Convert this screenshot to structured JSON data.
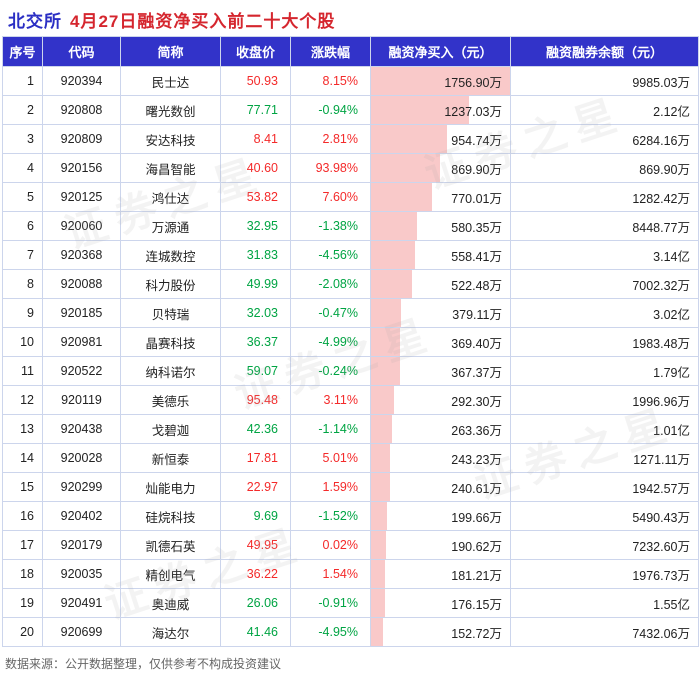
{
  "title": {
    "exchange": "北交所",
    "main": "4月27日融资净买入前二十大个股"
  },
  "table": {
    "headers": [
      "序号",
      "代码",
      "简称",
      "收盘价",
      "涨跌幅",
      "融资净买入（元）",
      "融资融券余额（元）"
    ],
    "rows": [
      {
        "seq": "1",
        "code": "920394",
        "name": "民士达",
        "price": "50.93",
        "change": "8.15%",
        "net_buy": "1756.90万",
        "balance": "9985.03万"
      },
      {
        "seq": "2",
        "code": "920808",
        "name": "曙光数创",
        "price": "77.71",
        "change": "-0.94%",
        "net_buy": "1237.03万",
        "balance": "2.12亿"
      },
      {
        "seq": "3",
        "code": "920809",
        "name": "安达科技",
        "price": "8.41",
        "change": "2.81%",
        "net_buy": "954.74万",
        "balance": "6284.16万"
      },
      {
        "seq": "4",
        "code": "920156",
        "name": "海昌智能",
        "price": "40.60",
        "change": "93.98%",
        "net_buy": "869.90万",
        "balance": "869.90万"
      },
      {
        "seq": "5",
        "code": "920125",
        "name": "鸿仕达",
        "price": "53.82",
        "change": "7.60%",
        "net_buy": "770.01万",
        "balance": "1282.42万"
      },
      {
        "seq": "6",
        "code": "920060",
        "name": "万源通",
        "price": "32.95",
        "change": "-1.38%",
        "net_buy": "580.35万",
        "balance": "8448.77万"
      },
      {
        "seq": "7",
        "code": "920368",
        "name": "连城数控",
        "price": "31.83",
        "change": "-4.56%",
        "net_buy": "558.41万",
        "balance": "3.14亿"
      },
      {
        "seq": "8",
        "code": "920088",
        "name": "科力股份",
        "price": "49.99",
        "change": "-2.08%",
        "net_buy": "522.48万",
        "balance": "7002.32万"
      },
      {
        "seq": "9",
        "code": "920185",
        "name": "贝特瑞",
        "price": "32.03",
        "change": "-0.47%",
        "net_buy": "379.11万",
        "balance": "3.02亿"
      },
      {
        "seq": "10",
        "code": "920981",
        "name": "晶赛科技",
        "price": "36.37",
        "change": "-4.99%",
        "net_buy": "369.40万",
        "balance": "1983.48万"
      },
      {
        "seq": "11",
        "code": "920522",
        "name": "纳科诺尔",
        "price": "59.07",
        "change": "-0.24%",
        "net_buy": "367.37万",
        "balance": "1.79亿"
      },
      {
        "seq": "12",
        "code": "920119",
        "name": "美德乐",
        "price": "95.48",
        "change": "3.11%",
        "net_buy": "292.30万",
        "balance": "1996.96万"
      },
      {
        "seq": "13",
        "code": "920438",
        "name": "戈碧迦",
        "price": "42.36",
        "change": "-1.14%",
        "net_buy": "263.36万",
        "balance": "1.01亿"
      },
      {
        "seq": "14",
        "code": "920028",
        "name": "新恒泰",
        "price": "17.81",
        "change": "5.01%",
        "net_buy": "243.23万",
        "balance": "1271.11万"
      },
      {
        "seq": "15",
        "code": "920299",
        "name": "灿能电力",
        "price": "22.97",
        "change": "1.59%",
        "net_buy": "240.61万",
        "balance": "1942.57万"
      },
      {
        "seq": "16",
        "code": "920402",
        "name": "硅烷科技",
        "price": "9.69",
        "change": "-1.52%",
        "net_buy": "199.66万",
        "balance": "5490.43万"
      },
      {
        "seq": "17",
        "code": "920179",
        "name": "凯德石英",
        "price": "49.95",
        "change": "0.02%",
        "net_buy": "190.62万",
        "balance": "7232.60万"
      },
      {
        "seq": "18",
        "code": "920035",
        "name": "精创电气",
        "price": "36.22",
        "change": "1.54%",
        "net_buy": "181.21万",
        "balance": "1976.73万"
      },
      {
        "seq": "19",
        "code": "920491",
        "name": "奥迪威",
        "price": "26.06",
        "change": "-0.91%",
        "net_buy": "176.15万",
        "balance": "1.55亿"
      },
      {
        "seq": "20",
        "code": "920699",
        "name": "海达尔",
        "price": "41.46",
        "change": "-4.95%",
        "net_buy": "152.72万",
        "balance": "7432.06万"
      }
    ]
  },
  "footer": {
    "source": "数据来源：公开数据整理，仅供参考不构成投资建议"
  },
  "watermark": "证券之星",
  "colors": {
    "up": "#f42a2a",
    "down": "#00a443",
    "header_bg": "#3233c9",
    "header_text": "#ffffff",
    "bar": "#f9c9c9",
    "border": "#ccd5ec",
    "title_exchange": "#2b2fc4",
    "title_main": "#d5262e",
    "source_text": "#666666"
  }
}
